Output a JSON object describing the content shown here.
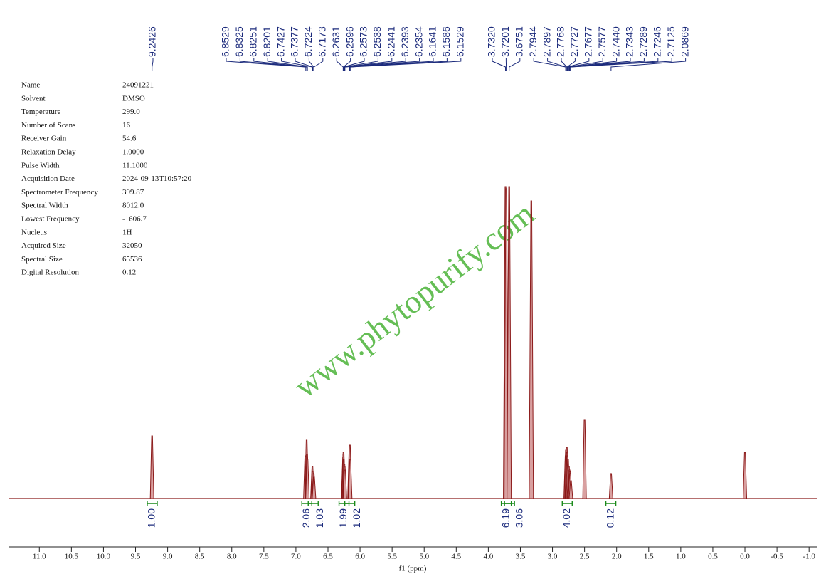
{
  "chart_data": {
    "type": "nmr",
    "x_label": "f1 (ppm)",
    "watermark": "www.phytopurify.com",
    "xlim": [
      11.48,
      -1.12
    ],
    "ylim": [
      0,
      440
    ],
    "xticks": [
      {
        "value": 11,
        "label": "11.0"
      },
      10.5,
      {
        "value": 10,
        "label": "10.0"
      },
      9.5,
      {
        "value": 9,
        "label": "9.0"
      },
      8.5,
      {
        "value": 8,
        "label": "8.0"
      },
      7.5,
      {
        "value": 7,
        "label": "7.0"
      },
      6.5,
      {
        "value": 6,
        "label": "6.0"
      },
      5.5,
      {
        "value": 5,
        "label": "5.0"
      },
      4.5,
      {
        "value": 4,
        "label": "4.0"
      },
      3.5,
      {
        "value": 3,
        "label": "3.0"
      },
      2.5,
      {
        "value": 2,
        "label": "2.0"
      },
      1.5,
      {
        "value": 1,
        "label": "1.0"
      },
      0.5,
      {
        "value": 0,
        "label": "0.0"
      },
      -0.5,
      {
        "value": -1,
        "label": "-1.0"
      }
    ],
    "color": "#8b1a1a",
    "x": [
      9.2426,
      6.8529,
      6.8325,
      6.8251,
      6.8201,
      6.7427,
      6.7377,
      6.7224,
      6.7173,
      6.2631,
      6.2596,
      6.2573,
      6.2538,
      6.2441,
      6.2393,
      6.2354,
      6.1641,
      6.1586,
      6.1529,
      3.732,
      3.7201,
      3.6751,
      3.33,
      2.7944,
      2.7897,
      2.7768,
      2.7727,
      2.7677,
      2.7577,
      2.744,
      2.7343,
      2.7289,
      2.7246,
      2.7125,
      2.5,
      2.0869,
      0
    ],
    "values": [
      88,
      60,
      82,
      62,
      55,
      45,
      38,
      35,
      30,
      58,
      62,
      65,
      55,
      48,
      45,
      40,
      70,
      75,
      55,
      438,
      435,
      438,
      418,
      60,
      68,
      72,
      65,
      60,
      55,
      45,
      40,
      38,
      35,
      25,
      110,
      35,
      65
    ],
    "peak_labels": [
      9.2426,
      6.8529,
      6.8325,
      6.8251,
      6.8201,
      6.7427,
      6.7377,
      6.7224,
      6.7173,
      6.2631,
      6.2596,
      6.2573,
      6.2538,
      6.2441,
      6.2393,
      6.2354,
      6.1641,
      6.1586,
      6.1529,
      {
        "value": 3.732,
        "label": "3.7320"
      },
      3.7201,
      3.6751,
      2.7944,
      2.7897,
      2.7768,
      2.7727,
      2.7677,
      2.7577,
      {
        "value": 2.744,
        "label": "2.7440"
      },
      2.7343,
      2.7289,
      2.7246,
      2.7125,
      2.0869
    ],
    "integrals": {
      "x": [
        9.24,
        6.83,
        6.73,
        6.25,
        6.16,
        3.72,
        3.67,
        2.77,
        2.09
      ],
      "values": [
        1,
        2.06,
        1.03,
        1.99,
        1.02,
        6.19,
        3.06,
        4.02,
        0.12
      ],
      "value_labels": [
        "1.00",
        "2.06",
        "1.03",
        "1.99",
        "1.02",
        "6.19",
        "3.06",
        "4.02",
        "0.12"
      ]
    },
    "parameters": [
      [
        "Name",
        "24091221"
      ],
      [
        "Solvent",
        "DMSO"
      ],
      [
        "Temperature",
        "299.0"
      ],
      [
        "Number of Scans",
        "16"
      ],
      [
        "Receiver Gain",
        "54.6"
      ],
      [
        "Relaxation Delay",
        "1.0000"
      ],
      [
        "Pulse Width",
        "11.1000"
      ],
      [
        "Acquisition Date",
        "2024-09-13T10:57:20"
      ],
      [
        "Spectrometer Frequency",
        "399.87"
      ],
      [
        "Spectral Width",
        "8012.0"
      ],
      [
        "Lowest Frequency",
        "-1606.7"
      ],
      [
        "Nucleus",
        "1H"
      ],
      [
        "Acquired Size",
        "32050"
      ],
      [
        "Spectral Size",
        "65536"
      ],
      [
        "Digital Resolution",
        "0.12"
      ]
    ]
  }
}
